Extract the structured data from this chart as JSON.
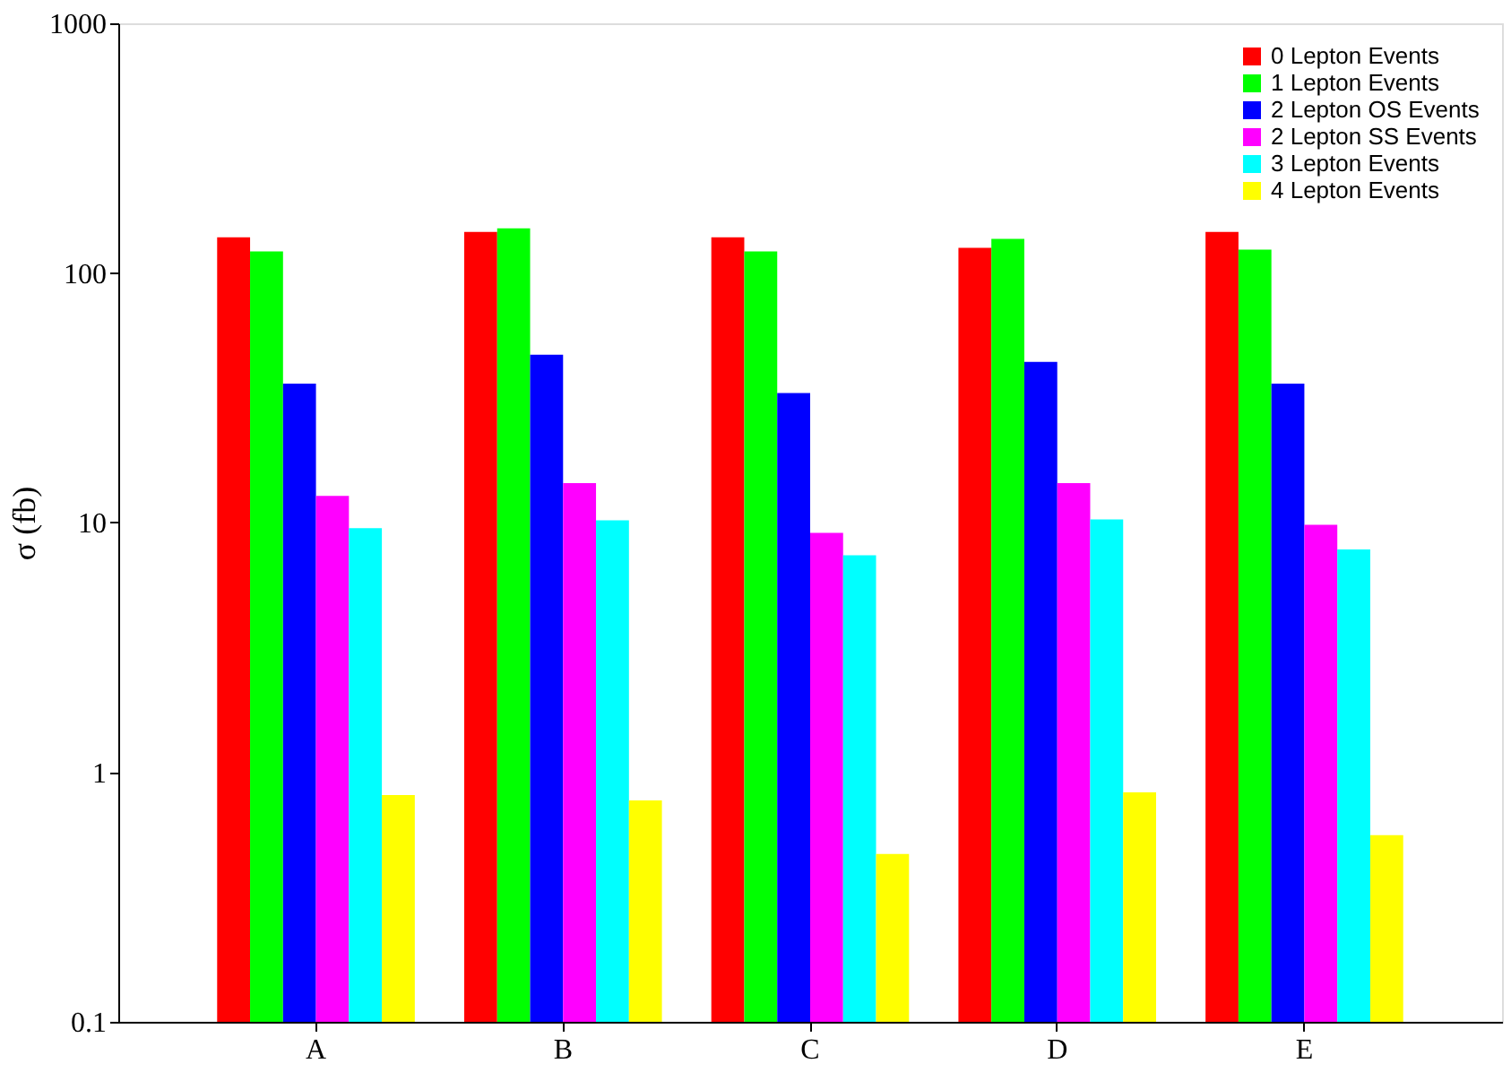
{
  "chart_data": {
    "type": "bar",
    "ylabel": "σ (fb)",
    "categories": [
      "A",
      "B",
      "C",
      "D",
      "E"
    ],
    "series": [
      {
        "name": "0 Lepton Events",
        "color": "#ff0000",
        "values": [
          139,
          146,
          139,
          126,
          146
        ]
      },
      {
        "name": "1 Lepton Events",
        "color": "#00ff00",
        "values": [
          122,
          151,
          122,
          137,
          124
        ]
      },
      {
        "name": "2 Lepton OS Events",
        "color": "#0000ff",
        "values": [
          36,
          47,
          33,
          44,
          36
        ]
      },
      {
        "name": "2 Lepton SS Events",
        "color": "#ff00ff",
        "values": [
          12.8,
          14.4,
          9.1,
          14.4,
          9.8
        ]
      },
      {
        "name": "3 Lepton Events",
        "color": "#00ffff",
        "values": [
          9.5,
          10.2,
          7.4,
          10.3,
          7.8
        ]
      },
      {
        "name": "4 Lepton Events",
        "color": "#ffff00",
        "values": [
          0.81,
          0.77,
          0.47,
          0.83,
          0.56
        ]
      }
    ],
    "log": true,
    "ylim": [
      0.1,
      1000
    ],
    "yticks": [
      0.1,
      1,
      10,
      100,
      1000
    ],
    "grid": false,
    "legend": "top right"
  }
}
